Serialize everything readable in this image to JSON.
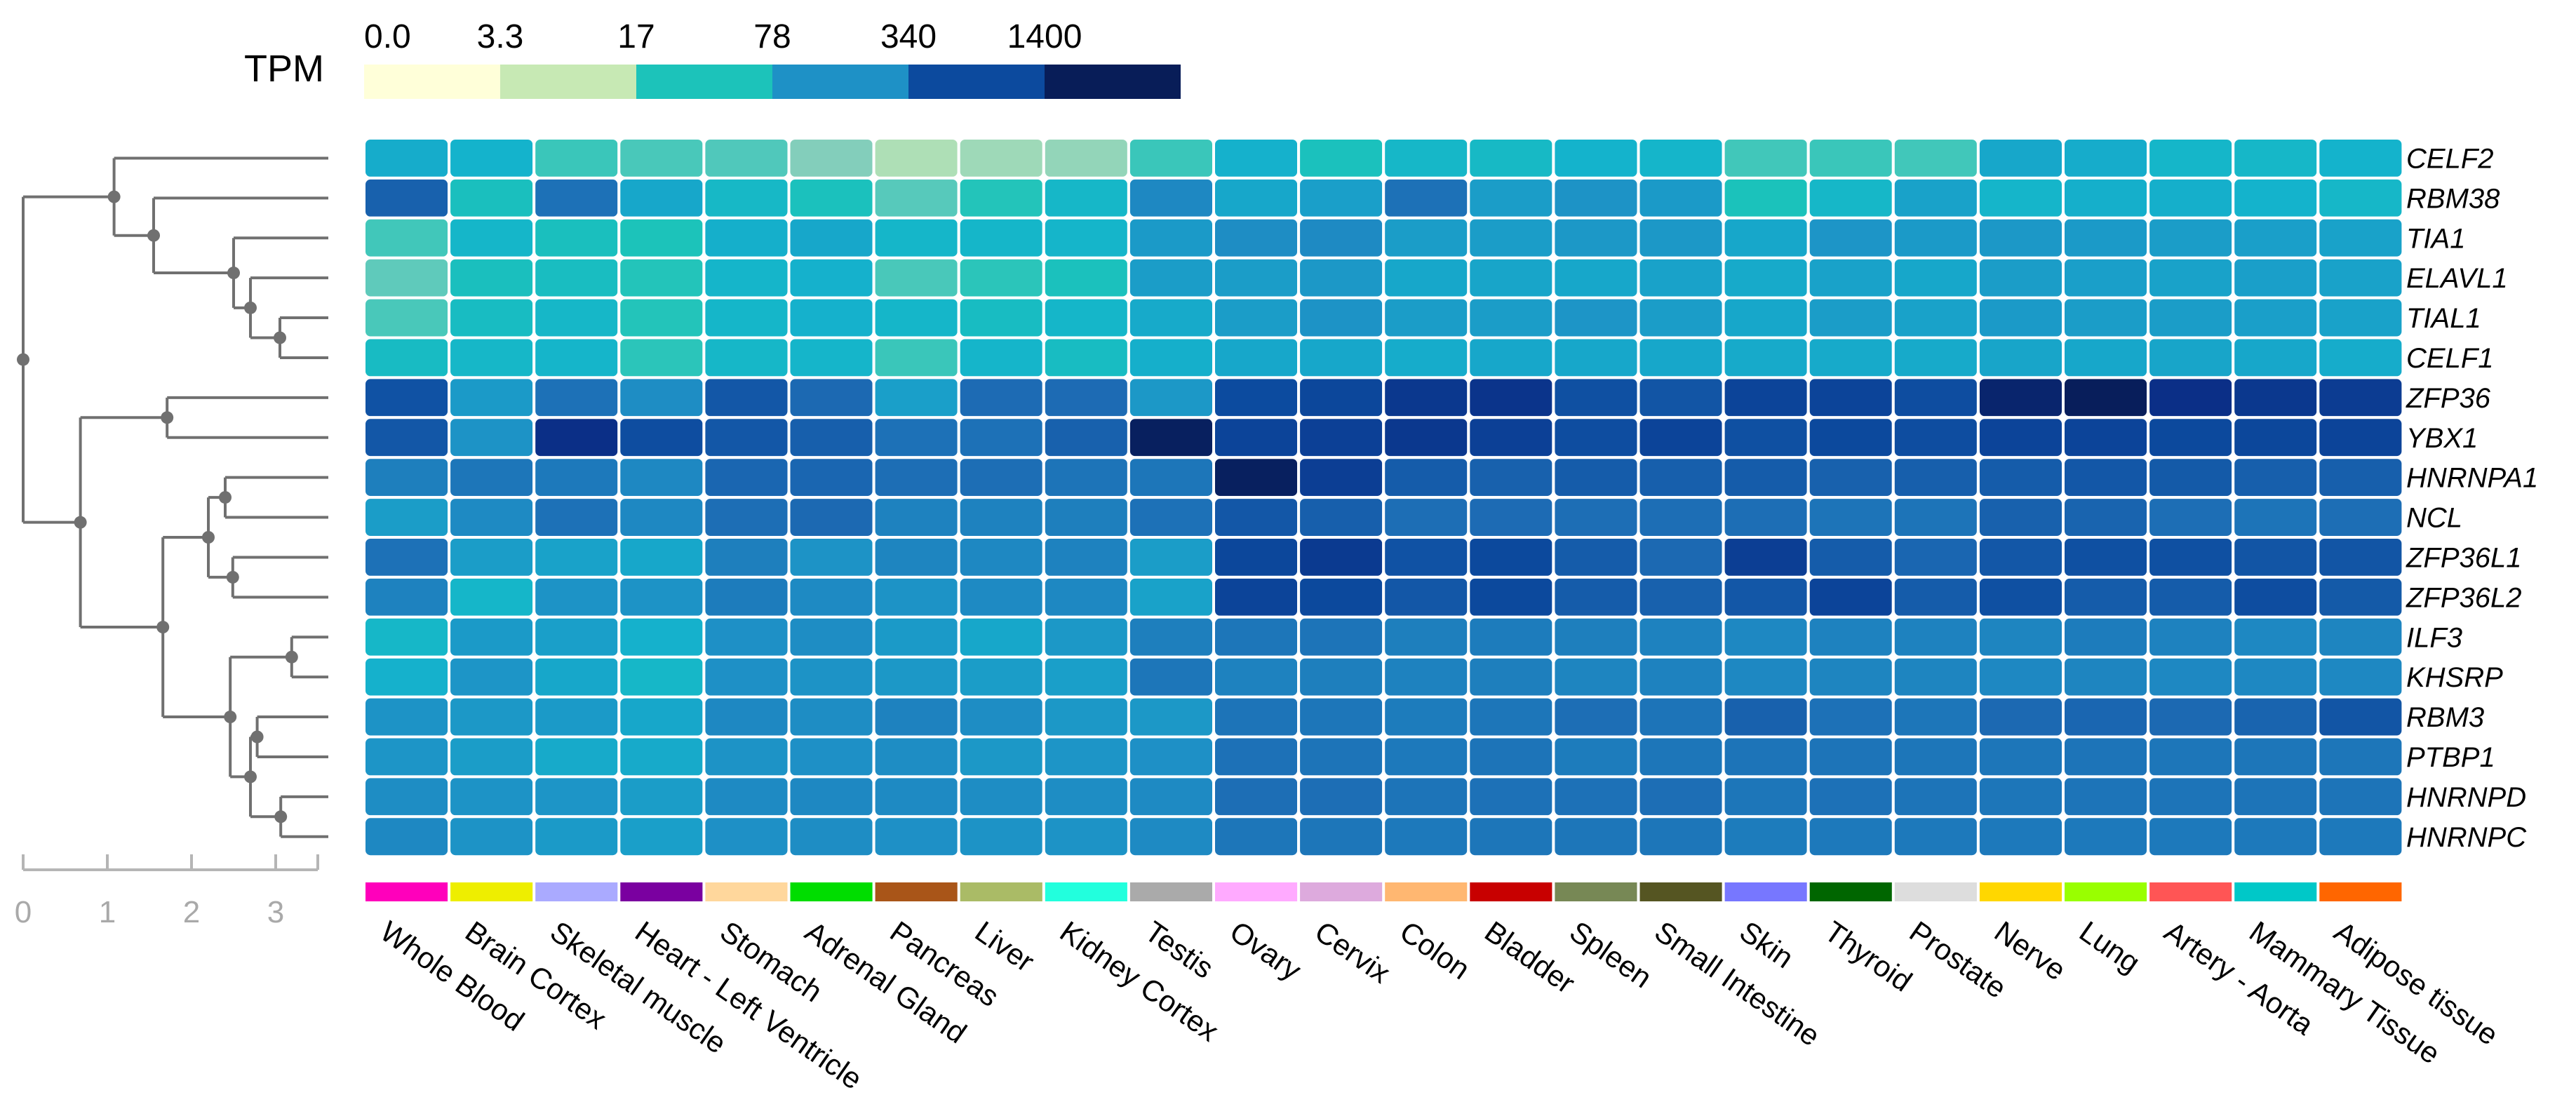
{
  "chart_data": {
    "type": "heatmap",
    "legend": {
      "title": "TPM",
      "ticks": [
        "0.0",
        "3.3",
        "17",
        "78",
        "340",
        "1400"
      ],
      "colors": [
        "#FFFFD9",
        "#C7E9B4",
        "#1CC3BA",
        "#1E91C6",
        "#0C4A9E",
        "#081D58"
      ]
    },
    "colormap": [
      "#FFFFD9",
      "#C7E9B4",
      "#7FCDBB",
      "#1CC3BA",
      "#14B3CC",
      "#1E91C6",
      "#1D6BB4",
      "#0C4A9E",
      "#0B2E86",
      "#081D58"
    ],
    "value_scale": "log2(TPM+1)",
    "tissues": [
      "Whole Blood",
      "Brain Cortex",
      "Skeletal muscle",
      "Heart - Left Ventricle",
      "Stomach",
      "Adrenal Gland",
      "Pancreas",
      "Liver",
      "Kidney Cortex",
      "Testis",
      "Ovary",
      "Cervix",
      "Colon",
      "Bladder",
      "Spleen",
      "Small Intestine",
      "Skin",
      "Thyroid",
      "Prostate",
      "Nerve",
      "Lung",
      "Artery - Aorta",
      "Mammary Tissue",
      "Adipose tissue"
    ],
    "tissue_colors": [
      "#FF00BB",
      "#EEEE00",
      "#AAAAFF",
      "#7A00A0",
      "#FFD79C",
      "#00DD00",
      "#A95518",
      "#AABB66",
      "#22FFDD",
      "#AAAAAA",
      "#FFAAFF",
      "#DDAADD",
      "#FFB771",
      "#C80000",
      "#778855",
      "#555522",
      "#7777FF",
      "#006600",
      "#DDDDDD",
      "#FFD700",
      "#99FF00",
      "#FF5555",
      "#00C8C8",
      "#FF6600"
    ],
    "genes": [
      "CELF2",
      "RBM38",
      "TIA1",
      "ELAVL1",
      "TIAL1",
      "CELF1",
      "ZFP36",
      "YBX1",
      "HNRNPA1",
      "NCL",
      "ZFP36L1",
      "ZFP36L2",
      "ILF3",
      "KHSRP",
      "RBM3",
      "PTBP1",
      "HNRNPD",
      "HNRNPC"
    ],
    "values": [
      [
        5.6,
        5.3,
        3.6,
        3.4,
        3.3,
        2.6,
        1.8,
        2.1,
        2.3,
        3.6,
        5.4,
        4.2,
        5.0,
        4.8,
        5.3,
        5.2,
        3.5,
        3.6,
        3.5,
        5.8,
        5.6,
        5.1,
        5.0,
        5.3
      ],
      [
        8.4,
        4.3,
        7.8,
        5.8,
        4.9,
        4.2,
        3.2,
        3.9,
        5.0,
        7.0,
        5.8,
        6.1,
        7.8,
        6.2,
        6.6,
        6.3,
        4.1,
        5.0,
        6.0,
        5.2,
        5.5,
        5.5,
        5.3,
        5.0
      ],
      [
        3.5,
        5.1,
        4.3,
        4.0,
        5.5,
        5.8,
        5.1,
        5.1,
        5.2,
        6.3,
        6.8,
        6.9,
        6.2,
        6.2,
        6.4,
        6.4,
        5.8,
        6.5,
        6.3,
        6.4,
        6.3,
        6.2,
        6.1,
        6.0
      ],
      [
        3.1,
        4.3,
        4.5,
        3.9,
        5.2,
        5.4,
        3.4,
        3.8,
        4.2,
        6.2,
        6.2,
        6.4,
        5.8,
        5.9,
        5.8,
        6.0,
        5.7,
        6.0,
        5.8,
        6.2,
        6.1,
        6.0,
        6.1,
        6.0
      ],
      [
        3.4,
        4.6,
        5.0,
        3.9,
        5.1,
        5.4,
        5.1,
        4.6,
        5.1,
        5.7,
        6.2,
        6.6,
        6.2,
        6.2,
        6.5,
        6.2,
        5.8,
        6.2,
        6.0,
        6.3,
        6.2,
        6.2,
        6.1,
        6.0
      ],
      [
        4.7,
        5.0,
        5.2,
        3.8,
        5.0,
        5.2,
        3.6,
        5.2,
        4.6,
        5.5,
        5.8,
        5.8,
        5.6,
        5.8,
        5.8,
        5.8,
        5.7,
        5.7,
        5.7,
        5.9,
        5.8,
        5.9,
        5.8,
        5.6
      ],
      [
        9.0,
        6.3,
        7.8,
        6.8,
        8.8,
        8.1,
        6.1,
        8.0,
        8.0,
        6.4,
        9.3,
        9.5,
        10.2,
        10.4,
        9.1,
        8.9,
        9.6,
        9.6,
        9.2,
        11.4,
        11.9,
        10.6,
        10.2,
        10.0
      ],
      [
        8.8,
        6.6,
        10.6,
        9.2,
        8.8,
        8.5,
        7.8,
        7.8,
        8.4,
        11.8,
        9.6,
        9.8,
        10.2,
        9.8,
        9.2,
        9.6,
        9.1,
        9.4,
        9.2,
        9.6,
        9.6,
        9.4,
        9.5,
        9.6
      ],
      [
        7.3,
        7.6,
        7.5,
        7.0,
        8.2,
        8.2,
        7.9,
        7.9,
        7.7,
        7.6,
        11.8,
        9.9,
        8.6,
        8.4,
        8.6,
        8.5,
        8.6,
        8.4,
        8.5,
        8.6,
        8.8,
        8.7,
        8.5,
        8.5
      ],
      [
        6.2,
        6.9,
        7.8,
        7.0,
        7.9,
        8.1,
        7.2,
        7.2,
        7.3,
        7.8,
        8.8,
        8.5,
        7.9,
        8.0,
        7.9,
        7.9,
        7.9,
        7.7,
        7.7,
        8.4,
        8.3,
        7.9,
        7.7,
        7.9
      ],
      [
        7.8,
        6.2,
        6.0,
        5.8,
        7.3,
        6.6,
        7.1,
        7.0,
        7.2,
        6.2,
        9.5,
        10.1,
        9.0,
        9.4,
        8.6,
        8.1,
        9.9,
        8.6,
        8.2,
        8.8,
        9.1,
        9.1,
        8.9,
        8.9
      ],
      [
        7.2,
        5.1,
        6.6,
        6.6,
        7.4,
        6.9,
        6.6,
        6.9,
        7.0,
        6.0,
        9.6,
        9.4,
        8.8,
        9.4,
        8.6,
        8.4,
        8.8,
        9.6,
        8.6,
        9.1,
        8.6,
        8.6,
        9.2,
        8.7
      ],
      [
        5.0,
        6.3,
        6.1,
        5.4,
        6.7,
        6.8,
        6.3,
        5.8,
        6.4,
        7.3,
        7.6,
        7.7,
        7.3,
        7.4,
        7.3,
        7.2,
        7.0,
        7.2,
        7.2,
        7.1,
        7.4,
        7.2,
        7.0,
        7.1
      ],
      [
        5.4,
        6.5,
        5.8,
        5.0,
        6.7,
        6.6,
        6.4,
        6.2,
        6.1,
        7.6,
        7.2,
        7.3,
        7.2,
        7.3,
        7.1,
        7.2,
        7.0,
        7.1,
        7.1,
        7.0,
        7.1,
        7.0,
        7.0,
        7.0
      ],
      [
        6.6,
        6.4,
        6.3,
        5.8,
        7.0,
        6.8,
        7.2,
        6.8,
        6.4,
        6.4,
        7.7,
        7.6,
        7.4,
        7.6,
        7.9,
        7.7,
        8.4,
        7.8,
        7.6,
        8.1,
        8.2,
        8.1,
        8.3,
        8.9
      ],
      [
        6.5,
        6.2,
        5.7,
        5.7,
        6.6,
        6.7,
        6.8,
        6.4,
        6.5,
        6.7,
        7.8,
        7.7,
        7.5,
        7.7,
        7.4,
        7.6,
        7.7,
        7.7,
        7.6,
        7.6,
        7.7,
        7.6,
        7.6,
        7.6
      ],
      [
        6.8,
        6.6,
        6.5,
        6.2,
        6.9,
        7.0,
        6.9,
        6.8,
        6.8,
        6.9,
        7.9,
        7.9,
        7.7,
        7.8,
        7.8,
        7.9,
        7.6,
        7.8,
        7.7,
        7.6,
        7.7,
        7.7,
        7.7,
        7.7
      ],
      [
        7.0,
        6.6,
        6.3,
        6.1,
        6.7,
        6.8,
        6.7,
        6.6,
        6.6,
        6.9,
        7.6,
        7.6,
        7.5,
        7.6,
        7.6,
        7.6,
        7.4,
        7.5,
        7.5,
        7.5,
        7.5,
        7.5,
        7.5,
        7.5
      ]
    ],
    "dendrogram": {
      "axis_ticks": [
        "0",
        "1",
        "2",
        "3"
      ],
      "axis_max": 3.5
    }
  }
}
